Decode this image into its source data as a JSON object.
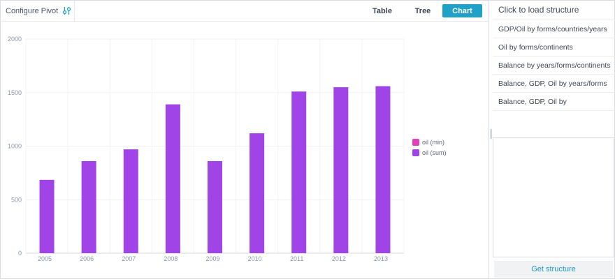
{
  "toolbar": {
    "configure_label": "Configure Pivot",
    "configure_icon": "sliders-icon",
    "tabs": [
      {
        "label": "Table"
      },
      {
        "label": "Tree"
      },
      {
        "label": "Chart",
        "active": true
      }
    ],
    "accent_color": "#1fa1c8"
  },
  "structure_panel": {
    "title": "Click to load structure",
    "items": [
      {
        "label": "GDP/Oil by forms/countries/years"
      },
      {
        "label": "Oil by forms/continents"
      },
      {
        "label": "Balance by years/forms/continents"
      },
      {
        "label": "Balance, GDP, Oil by years/forms"
      },
      {
        "label": "Balance, GDP, Oil by"
      }
    ],
    "textarea_value": "",
    "button_label": "Get structure"
  },
  "chart_data": {
    "type": "bar",
    "categories": [
      "2005",
      "2006",
      "2007",
      "2008",
      "2009",
      "2010",
      "2011",
      "2012",
      "2013"
    ],
    "series": [
      {
        "name": "oil (min)",
        "color": "#e040b8",
        "values": [
          0,
          0,
          0,
          0,
          0,
          0,
          0,
          0,
          0
        ]
      },
      {
        "name": "oil (sum)",
        "color": "#a044e8",
        "values": [
          685,
          860,
          970,
          1390,
          860,
          1120,
          1510,
          1550,
          1560
        ]
      }
    ],
    "yticks": [
      "0",
      "500",
      "1000",
      "1500",
      "2000"
    ],
    "ylim": [
      0,
      2000
    ],
    "grid": true,
    "legend_position": "right"
  }
}
